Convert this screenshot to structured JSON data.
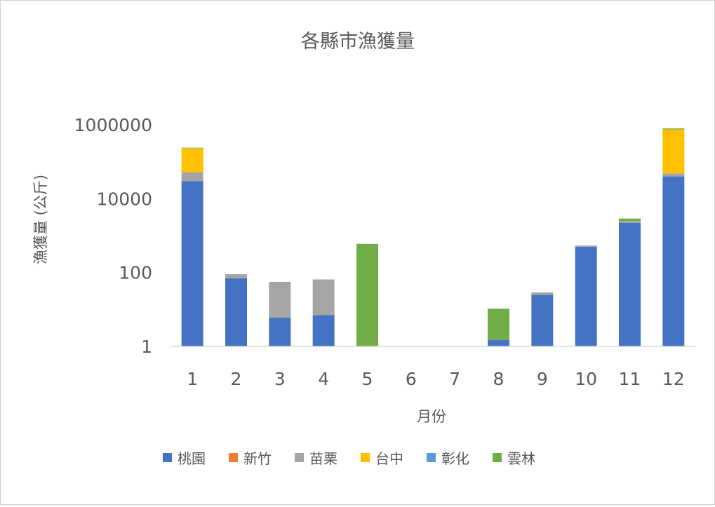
{
  "chart_data": {
    "type": "bar",
    "stacked": true,
    "title": "各縣市漁獲量",
    "xlabel": "月份",
    "ylabel": "漁獲量 (公斤)",
    "yscale": "log",
    "ylim": [
      1,
      1000000
    ],
    "yticks": [
      "1",
      "100",
      "10000",
      "1000000"
    ],
    "grid": false,
    "legend_position": "bottom",
    "categories": [
      "1",
      "2",
      "3",
      "4",
      "5",
      "6",
      "7",
      "8",
      "9",
      "10",
      "11",
      "12"
    ],
    "series": [
      {
        "name": "桃園",
        "color": "#4472C4",
        "values": [
          30000,
          70,
          6,
          7,
          0,
          0,
          0,
          1.5,
          25,
          500,
          2200,
          40000
        ]
      },
      {
        "name": "新竹",
        "color": "#ED7D31",
        "values": [
          0,
          0,
          0,
          0,
          0,
          0,
          0,
          0,
          0,
          0,
          0,
          0
        ]
      },
      {
        "name": "苗栗",
        "color": "#A5A5A5",
        "values": [
          22000,
          20,
          50,
          58,
          0,
          0,
          0,
          0,
          4,
          40,
          300,
          8000
        ]
      },
      {
        "name": "台中",
        "color": "#FFC000",
        "values": [
          180000,
          0,
          0,
          0,
          0,
          0,
          0,
          0,
          0,
          0,
          0,
          700000
        ]
      },
      {
        "name": "彰化",
        "color": "#5B9BD5",
        "values": [
          0,
          0,
          0,
          0,
          0,
          0,
          0,
          0,
          0,
          0,
          0,
          0
        ]
      },
      {
        "name": "雲林",
        "color": "#70AD47",
        "values": [
          8000,
          0,
          0,
          0,
          600,
          0,
          1.0,
          9,
          0,
          0,
          400,
          50000
        ]
      }
    ],
    "series_offsets_note_removed": true
  }
}
